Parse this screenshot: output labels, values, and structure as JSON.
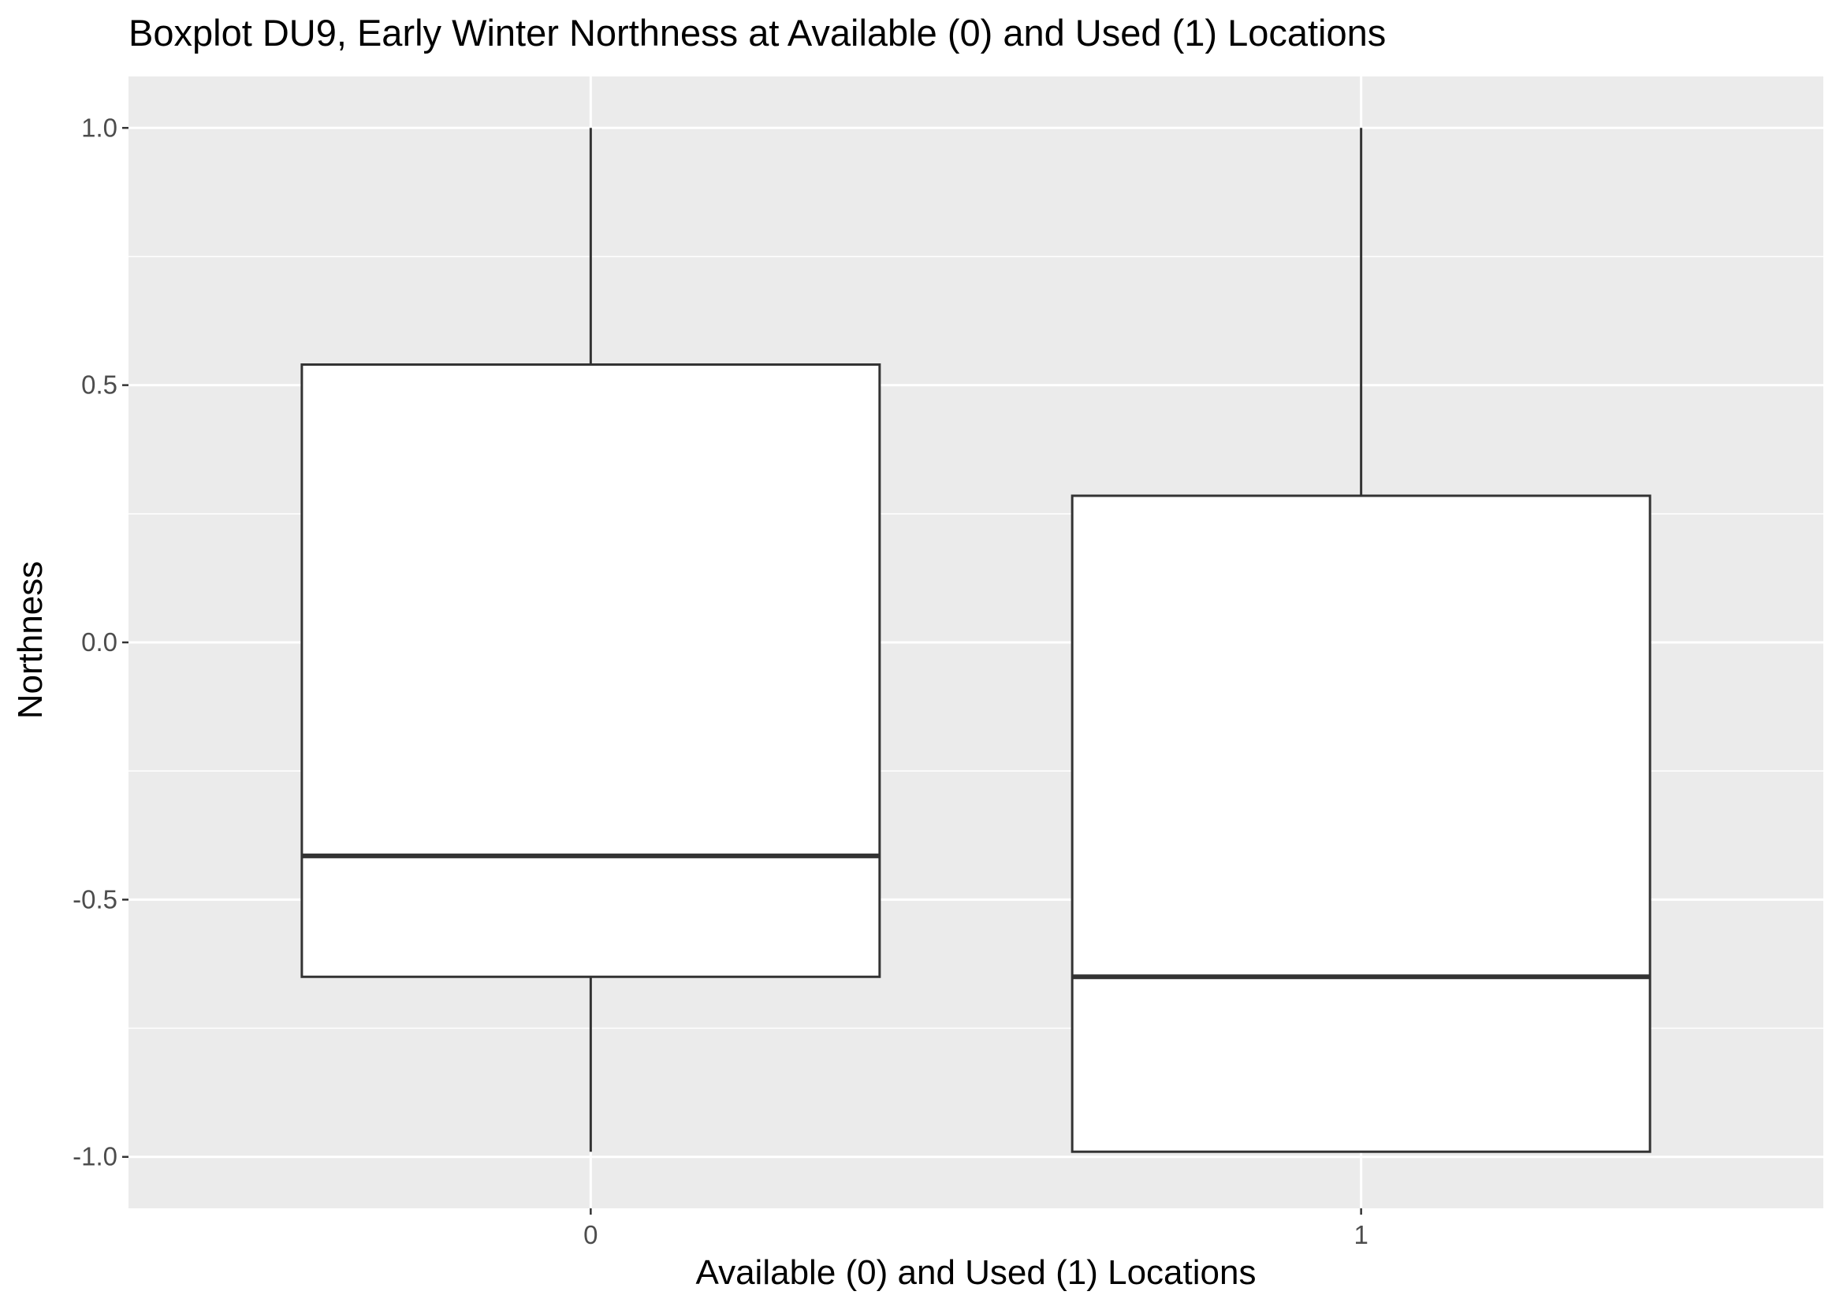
{
  "chart_data": {
    "type": "boxplot",
    "title": "Boxplot DU9, Early Winter Northness at Available (0) and Used (1) Locations",
    "xlabel": "Available (0) and Used (1) Locations",
    "ylabel": "Northness",
    "categories": [
      "0",
      "1"
    ],
    "boxes": [
      {
        "category": "0",
        "min": -0.99,
        "q1": -0.65,
        "median": -0.415,
        "q3": 0.54,
        "max": 1.0
      },
      {
        "category": "1",
        "min": -0.99,
        "q1": -0.99,
        "median": -0.65,
        "q3": 0.285,
        "max": 1.0
      }
    ],
    "yticks": [
      -1.0,
      -0.5,
      0.0,
      0.5,
      1.0
    ],
    "ytick_labels": [
      "-1.0",
      "-0.5",
      "0.0",
      "0.5",
      "1.0"
    ],
    "ylim": [
      -1.1,
      1.1
    ],
    "grid": true,
    "legend": "none",
    "colors": {
      "panel": "#ebebeb",
      "grid": "#ffffff",
      "box_fill": "#ffffff",
      "box_line": "#333333",
      "tick_text": "#4d4d4d",
      "tick_mark": "#333333"
    }
  }
}
